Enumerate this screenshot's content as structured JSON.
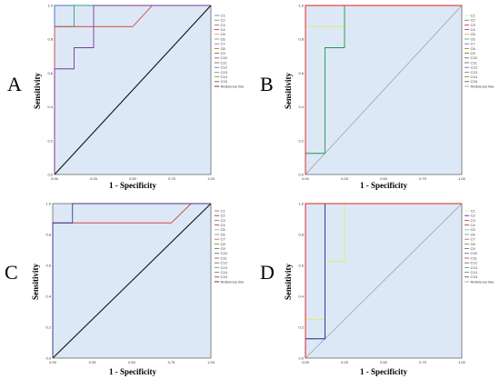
{
  "colors": {
    "plot_background": "#dde8f6",
    "reference_line_A": "#111111",
    "reference_line_B": "#9a9a9a"
  },
  "chart_data": [
    {
      "panel_label": "A",
      "type": "line",
      "xlabel": "1 - Specificity",
      "ylabel": "Sensitivity",
      "xlim": [
        0,
        1
      ],
      "ylim": [
        0,
        1
      ],
      "x_ticks": [
        "0.00",
        "0.25",
        "0.50",
        "0.75",
        "1.00"
      ],
      "y_ticks": [
        "0.0",
        "0.2",
        "0.4",
        "0.6",
        "0.8",
        "1.0"
      ],
      "legend_position": "right",
      "legend": [
        "C1",
        "C2",
        "C3",
        "C4",
        "C5",
        "C6",
        "C7",
        "C8",
        "C9",
        "C10",
        "C11",
        "C12",
        "C13",
        "C14",
        "C15",
        "Reference line"
      ],
      "reference_line_color": "#111111",
      "series": [
        {
          "name": "C1",
          "color": "#4a6fd0",
          "points": [
            [
              0,
              0
            ],
            [
              0,
              1
            ],
            [
              1,
              1
            ]
          ]
        },
        {
          "name": "C2",
          "color": "#2ea36a",
          "points": [
            [
              0,
              0
            ],
            [
              0,
              0.875
            ],
            [
              0.125,
              0.875
            ],
            [
              0.125,
              1
            ],
            [
              1,
              1
            ]
          ]
        },
        {
          "name": "C3",
          "color": "#d04a4a",
          "points": [
            [
              0,
              0
            ],
            [
              0,
              0.875
            ],
            [
              0.5,
              0.875
            ],
            [
              0.625,
              1
            ],
            [
              1,
              1
            ]
          ]
        },
        {
          "name": "C4",
          "color": "#7a3a9a",
          "points": [
            [
              0,
              0
            ],
            [
              0,
              0.625
            ],
            [
              0.125,
              0.625
            ],
            [
              0.125,
              0.75
            ],
            [
              0.25,
              0.75
            ],
            [
              0.25,
              1
            ],
            [
              1,
              1
            ]
          ]
        }
      ]
    },
    {
      "panel_label": "B",
      "type": "line",
      "xlabel": "1 - Specificity",
      "ylabel": "Sensitivity",
      "xlim": [
        0,
        1
      ],
      "ylim": [
        0,
        1
      ],
      "x_ticks": [
        "0.00",
        "0.25",
        "0.50",
        "0.75",
        "1.00"
      ],
      "y_ticks": [
        "0.0",
        "0.2",
        "0.4",
        "0.6",
        "0.8",
        "1.0"
      ],
      "legend_position": "right",
      "legend": [
        "C1",
        "C2",
        "C3",
        "C4",
        "C5",
        "C6",
        "C7",
        "C8",
        "C9",
        "C10",
        "C11",
        "C12",
        "C13",
        "C14",
        "C15",
        "Reference line"
      ],
      "reference_line_color": "#9a9a9a",
      "series": [
        {
          "name": "C1",
          "color": "#e8e87a",
          "points": [
            [
              0,
              0
            ],
            [
              0,
              0.875
            ],
            [
              0.25,
              0.875
            ],
            [
              0.25,
              1
            ],
            [
              1,
              1
            ]
          ]
        },
        {
          "name": "C2",
          "color": "#1a9a4a",
          "points": [
            [
              0,
              0
            ],
            [
              0,
              0.125
            ],
            [
              0.125,
              0.125
            ],
            [
              0.125,
              0.75
            ],
            [
              0.25,
              0.75
            ],
            [
              0.25,
              1
            ],
            [
              1,
              1
            ]
          ]
        },
        {
          "name": "C3",
          "color": "#e02020",
          "points": [
            [
              0,
              0
            ],
            [
              0,
              1
            ],
            [
              1,
              1
            ]
          ]
        }
      ]
    },
    {
      "panel_label": "C",
      "type": "line",
      "xlabel": "1 - Specificity",
      "ylabel": "Sensitivity",
      "xlim": [
        0,
        1
      ],
      "ylim": [
        0,
        1
      ],
      "x_ticks": [
        "0.00",
        "0.25",
        "0.50",
        "0.75",
        "1.00"
      ],
      "y_ticks": [
        "0.0",
        "0.2",
        "0.4",
        "0.6",
        "0.8",
        "1.0"
      ],
      "legend_position": "right",
      "legend": [
        "C1",
        "C2",
        "C3",
        "C4",
        "C5",
        "C6",
        "C7",
        "C8",
        "C9",
        "C10",
        "C11",
        "C12",
        "C13",
        "C14",
        "C15",
        "Reference line"
      ],
      "reference_line_color": "#111111",
      "series": [
        {
          "name": "C1",
          "color": "#d04a4a",
          "points": [
            [
              0,
              0
            ],
            [
              0,
              0.875
            ],
            [
              0.75,
              0.875
            ],
            [
              0.875,
              1
            ],
            [
              1,
              1
            ]
          ]
        },
        {
          "name": "C2",
          "color": "#3a3a8a",
          "points": [
            [
              0,
              0
            ],
            [
              0,
              0.875
            ],
            [
              0.125,
              0.875
            ],
            [
              0.125,
              1
            ],
            [
              1,
              1
            ]
          ]
        }
      ]
    },
    {
      "panel_label": "D",
      "type": "line",
      "xlabel": "1 - Specificity",
      "ylabel": "Sensitivity",
      "xlim": [
        0,
        1
      ],
      "ylim": [
        0,
        1
      ],
      "x_ticks": [
        "0.00",
        "0.25",
        "0.50",
        "0.75",
        "1.00"
      ],
      "y_ticks": [
        "0.0",
        "0.2",
        "0.4",
        "0.6",
        "0.8",
        "1.0"
      ],
      "legend_position": "right",
      "legend": [
        "C1",
        "C2",
        "C3",
        "C4",
        "C5",
        "C6",
        "C7",
        "C8",
        "C9",
        "C10",
        "C11",
        "C12",
        "C13",
        "C14",
        "C15",
        "Reference line"
      ],
      "reference_line_color": "#9a9a9a",
      "series": [
        {
          "name": "C1",
          "color": "#e8e87a",
          "points": [
            [
              0,
              0
            ],
            [
              0,
              0.25
            ],
            [
              0.125,
              0.25
            ],
            [
              0.125,
              0.625
            ],
            [
              0.25,
              0.625
            ],
            [
              0.25,
              1
            ],
            [
              1,
              1
            ]
          ]
        },
        {
          "name": "C2",
          "color": "#1a2a8a",
          "points": [
            [
              0,
              0
            ],
            [
              0,
              0.125
            ],
            [
              0.125,
              0.125
            ],
            [
              0.125,
              1
            ],
            [
              1,
              1
            ]
          ]
        },
        {
          "name": "C3",
          "color": "#e02020",
          "points": [
            [
              0,
              0
            ],
            [
              0,
              1
            ],
            [
              1,
              1
            ]
          ]
        }
      ]
    }
  ]
}
